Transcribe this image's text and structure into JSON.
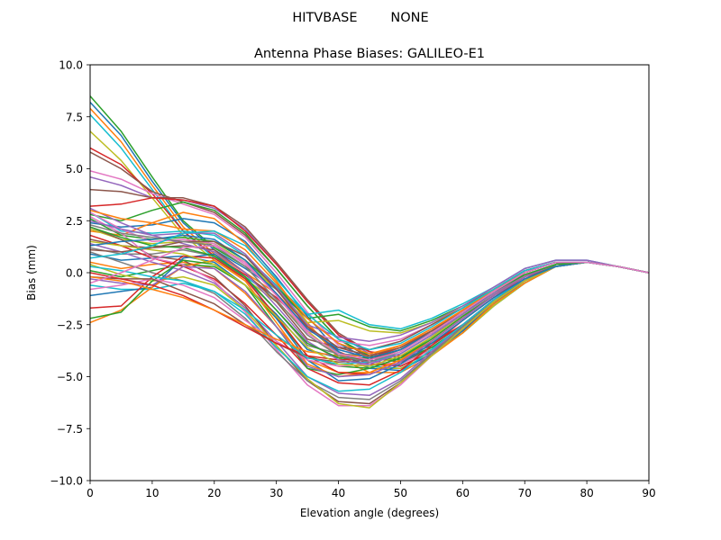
{
  "figure": {
    "suptitle": "HITVBASE        NONE"
  },
  "chart_data": {
    "type": "line",
    "title": "Antenna Phase Biases: GALILEO-E1",
    "xlabel": "Elevation angle (degrees)",
    "ylabel": "Bias (mm)",
    "xlim": [
      0,
      90
    ],
    "ylim": [
      -10,
      10
    ],
    "xticks": [
      "0",
      "10",
      "20",
      "30",
      "40",
      "50",
      "60",
      "70",
      "80",
      "90"
    ],
    "yticks": [
      "10.0",
      "7.5",
      "5.0",
      "2.5",
      "0.0",
      "−2.5",
      "−5.0",
      "−7.5",
      "−10.0"
    ],
    "grid": false,
    "legend": "none",
    "x": [
      0,
      5,
      10,
      15,
      20,
      25,
      30,
      35,
      40,
      45,
      50,
      55,
      60,
      65,
      70,
      75,
      80,
      85,
      90
    ],
    "series": [
      {
        "color": "#1f77b4",
        "values": [
          8.2,
          6.6,
          4.4,
          2.4,
          1.1,
          0.2,
          -0.8,
          -2.2,
          -3.4,
          -4.2,
          -4.5,
          -3.8,
          -2.9,
          -1.6,
          -0.5,
          0.3,
          0.5,
          0.3,
          0.0
        ]
      },
      {
        "color": "#ff7f0e",
        "values": [
          7.9,
          6.3,
          4.2,
          2.2,
          0.9,
          0.0,
          -1.0,
          -2.5,
          -3.8,
          -4.4,
          -4.4,
          -3.7,
          -2.7,
          -1.5,
          -0.4,
          0.3,
          0.5,
          0.3,
          0.0
        ]
      },
      {
        "color": "#2ca02c",
        "values": [
          8.5,
          6.8,
          4.6,
          2.5,
          1.2,
          0.3,
          -0.7,
          -2.0,
          -3.2,
          -4.0,
          -4.3,
          -3.7,
          -2.8,
          -1.5,
          -0.4,
          0.4,
          0.5,
          0.3,
          0.0
        ]
      },
      {
        "color": "#17becf",
        "values": [
          7.6,
          6.0,
          4.0,
          2.0,
          0.7,
          -0.2,
          -1.2,
          -2.6,
          -3.9,
          -4.5,
          -4.6,
          -3.9,
          -2.9,
          -1.6,
          -0.5,
          0.3,
          0.5,
          0.3,
          0.0
        ]
      },
      {
        "color": "#bcbd22",
        "values": [
          6.8,
          5.4,
          3.6,
          1.8,
          0.6,
          -0.3,
          -1.4,
          -2.8,
          -4.0,
          -4.6,
          -4.6,
          -3.9,
          -2.9,
          -1.6,
          -0.5,
          0.3,
          0.5,
          0.3,
          0.0
        ]
      },
      {
        "color": "#d62728",
        "values": [
          6.0,
          5.2,
          3.8,
          2.0,
          0.8,
          -0.1,
          -1.2,
          -2.6,
          -3.8,
          -4.4,
          -4.5,
          -3.8,
          -2.8,
          -1.5,
          -0.4,
          0.3,
          0.5,
          0.3,
          0.0
        ]
      },
      {
        "color": "#8c564b",
        "values": [
          5.8,
          5.0,
          3.9,
          3.4,
          2.9,
          1.8,
          0.2,
          -1.6,
          -3.2,
          -4.1,
          -4.3,
          -3.6,
          -2.6,
          -1.4,
          -0.4,
          0.4,
          0.5,
          0.3,
          0.0
        ]
      },
      {
        "color": "#e377c2",
        "values": [
          4.9,
          4.5,
          3.8,
          3.3,
          2.8,
          1.7,
          0.0,
          -1.9,
          -3.5,
          -4.3,
          -4.4,
          -3.7,
          -2.7,
          -1.4,
          -0.4,
          0.4,
          0.5,
          0.3,
          0.0
        ]
      },
      {
        "color": "#9467bd",
        "values": [
          4.6,
          4.2,
          3.6,
          3.5,
          3.1,
          2.1,
          0.4,
          -1.4,
          -3.0,
          -3.9,
          -4.2,
          -3.6,
          -2.6,
          -1.4,
          -0.4,
          0.4,
          0.5,
          0.3,
          0.0
        ]
      },
      {
        "color": "#8c564b",
        "values": [
          4.0,
          3.9,
          3.6,
          3.6,
          3.2,
          2.2,
          0.5,
          -1.3,
          -2.9,
          -3.8,
          -4.1,
          -3.5,
          -2.5,
          -1.3,
          -0.3,
          0.4,
          0.5,
          0.3,
          0.0
        ]
      },
      {
        "color": "#d62728",
        "values": [
          3.2,
          3.3,
          3.6,
          3.5,
          3.2,
          2.0,
          0.4,
          -1.4,
          -3.0,
          -3.8,
          -4.0,
          -3.4,
          -2.5,
          -1.3,
          -0.3,
          0.4,
          0.5,
          0.3,
          0.0
        ]
      },
      {
        "color": "#2ca02c",
        "values": [
          2.8,
          2.5,
          3.0,
          3.4,
          3.0,
          1.9,
          0.2,
          -1.6,
          -3.2,
          -4.0,
          -4.2,
          -3.6,
          -2.6,
          -1.4,
          -0.4,
          0.4,
          0.5,
          0.3,
          0.0
        ]
      },
      {
        "color": "#1f77b4",
        "values": [
          2.4,
          2.2,
          2.3,
          2.6,
          2.4,
          1.5,
          -0.2,
          -2.1,
          -3.8,
          -4.6,
          -4.7,
          -3.9,
          -2.8,
          -1.5,
          -0.4,
          0.3,
          0.5,
          0.3,
          0.0
        ]
      },
      {
        "color": "#ff7f0e",
        "values": [
          2.0,
          1.8,
          2.4,
          2.9,
          2.6,
          1.4,
          -0.4,
          -2.4,
          -4.1,
          -4.8,
          -4.8,
          -4.0,
          -2.9,
          -1.5,
          -0.5,
          0.3,
          0.5,
          0.3,
          0.0
        ]
      },
      {
        "color": "#17becf",
        "values": [
          2.9,
          2.0,
          1.9,
          2.0,
          1.8,
          0.8,
          -0.6,
          -2.0,
          -1.8,
          -2.5,
          -2.7,
          -2.2,
          -1.5,
          -0.7,
          0.2,
          0.6,
          0.6,
          0.3,
          0.0
        ]
      },
      {
        "color": "#2ca02c",
        "values": [
          2.6,
          1.8,
          1.6,
          1.7,
          1.5,
          0.6,
          -0.7,
          -2.2,
          -2.0,
          -2.6,
          -2.8,
          -2.3,
          -1.6,
          -0.8,
          0.1,
          0.5,
          0.5,
          0.3,
          0.0
        ]
      },
      {
        "color": "#bcbd22",
        "values": [
          2.1,
          1.6,
          1.4,
          1.5,
          1.4,
          0.5,
          -0.8,
          -2.4,
          -2.3,
          -2.8,
          -2.9,
          -2.4,
          -1.7,
          -0.8,
          0.1,
          0.5,
          0.5,
          0.3,
          0.0
        ]
      },
      {
        "color": "#9467bd",
        "values": [
          3.1,
          2.4,
          1.8,
          1.9,
          1.9,
          0.9,
          -0.7,
          -2.5,
          -3.1,
          -3.3,
          -3.0,
          -2.4,
          -1.6,
          -0.7,
          0.2,
          0.6,
          0.6,
          0.3,
          0.0
        ]
      },
      {
        "color": "#e377c2",
        "values": [
          2.9,
          2.1,
          1.5,
          1.6,
          1.4,
          0.4,
          -1.0,
          -2.8,
          -3.3,
          -3.5,
          -3.2,
          -2.5,
          -1.7,
          -0.8,
          0.1,
          0.5,
          0.5,
          0.3,
          0.0
        ]
      },
      {
        "color": "#8c564b",
        "values": [
          1.6,
          1.3,
          1.2,
          1.3,
          1.1,
          0.0,
          -1.4,
          -3.2,
          -3.6,
          -3.7,
          -3.3,
          -2.5,
          -1.7,
          -0.8,
          0.1,
          0.5,
          0.5,
          0.3,
          0.0
        ]
      },
      {
        "color": "#7f7f7f",
        "values": [
          1.2,
          0.9,
          0.9,
          1.1,
          0.8,
          -0.3,
          -1.8,
          -3.5,
          -3.9,
          -4.0,
          -3.5,
          -2.7,
          -1.8,
          -0.9,
          0.0,
          0.5,
          0.5,
          0.3,
          0.0
        ]
      },
      {
        "color": "#1f77b4",
        "values": [
          0.9,
          0.6,
          0.7,
          0.8,
          0.5,
          -0.6,
          -2.0,
          -3.7,
          -4.1,
          -4.2,
          -3.7,
          -2.8,
          -1.9,
          -1.0,
          0.0,
          0.5,
          0.5,
          0.3,
          0.0
        ]
      },
      {
        "color": "#ff7f0e",
        "values": [
          0.5,
          0.2,
          0.4,
          0.5,
          0.2,
          -1.0,
          -2.6,
          -4.2,
          -4.8,
          -4.8,
          -4.2,
          -3.2,
          -2.1,
          -1.1,
          -0.1,
          0.4,
          0.5,
          0.3,
          0.0
        ]
      },
      {
        "color": "#2ca02c",
        "values": [
          0.1,
          -0.2,
          0.1,
          0.4,
          0.3,
          -0.6,
          -2.2,
          -4.0,
          -4.5,
          -4.6,
          -4.1,
          -3.1,
          -2.0,
          -1.0,
          -0.1,
          0.4,
          0.5,
          0.3,
          0.0
        ]
      },
      {
        "color": "#d62728",
        "values": [
          1.8,
          1.3,
          0.7,
          0.3,
          -0.3,
          -1.5,
          -3.0,
          -4.6,
          -5.3,
          -5.4,
          -4.7,
          -3.5,
          -2.3,
          -1.2,
          -0.2,
          0.4,
          0.5,
          0.3,
          0.0
        ]
      },
      {
        "color": "#9467bd",
        "values": [
          1.4,
          1.0,
          0.5,
          0.1,
          -0.5,
          -1.7,
          -3.3,
          -5.0,
          -5.8,
          -5.9,
          -5.1,
          -3.8,
          -2.5,
          -1.3,
          -0.3,
          0.3,
          0.5,
          0.3,
          0.0
        ]
      },
      {
        "color": "#8c564b",
        "values": [
          2.2,
          1.6,
          0.8,
          0.6,
          -0.2,
          -1.6,
          -3.5,
          -5.2,
          -6.2,
          -6.3,
          -5.3,
          -3.9,
          -2.6,
          -1.4,
          -0.3,
          0.3,
          0.5,
          0.3,
          0.0
        ]
      },
      {
        "color": "#e377c2",
        "values": [
          2.7,
          1.9,
          0.7,
          0.4,
          -0.4,
          -1.9,
          -3.7,
          -5.4,
          -6.4,
          -6.4,
          -5.4,
          -4.0,
          -2.7,
          -1.4,
          -0.4,
          0.3,
          0.5,
          0.3,
          0.0
        ]
      },
      {
        "color": "#7f7f7f",
        "values": [
          1.0,
          0.5,
          0.0,
          -0.4,
          -1.0,
          -2.2,
          -3.8,
          -5.2,
          -6.0,
          -6.1,
          -5.2,
          -3.9,
          -2.6,
          -1.4,
          -0.4,
          0.3,
          0.5,
          0.3,
          0.0
        ]
      },
      {
        "color": "#bcbd22",
        "values": [
          0.4,
          -0.1,
          -0.4,
          -0.2,
          -0.6,
          -1.8,
          -3.5,
          -5.1,
          -6.3,
          -6.5,
          -5.3,
          -4.0,
          -2.7,
          -1.4,
          -0.4,
          0.3,
          0.5,
          0.3,
          0.0
        ]
      },
      {
        "color": "#17becf",
        "values": [
          -0.6,
          -0.8,
          -0.8,
          -0.5,
          -0.9,
          -2.0,
          -3.6,
          -5.0,
          -5.7,
          -5.6,
          -4.8,
          -3.7,
          -2.5,
          -1.3,
          -0.3,
          0.3,
          0.5,
          0.3,
          0.0
        ]
      },
      {
        "color": "#1f77b4",
        "values": [
          -1.1,
          -0.9,
          -0.7,
          0.7,
          0.9,
          -0.2,
          -2.2,
          -4.2,
          -5.2,
          -5.1,
          -4.4,
          -3.4,
          -2.3,
          -1.2,
          -0.3,
          0.3,
          0.5,
          0.3,
          0.0
        ]
      },
      {
        "color": "#ff7f0e",
        "values": [
          -2.4,
          -1.8,
          -0.7,
          0.3,
          0.6,
          -0.4,
          -2.4,
          -4.4,
          -5.0,
          -4.8,
          -4.2,
          -3.3,
          -2.2,
          -1.1,
          -0.2,
          0.4,
          0.5,
          0.3,
          0.0
        ]
      },
      {
        "color": "#2ca02c",
        "values": [
          -2.2,
          -1.9,
          -0.4,
          0.6,
          0.4,
          -0.6,
          -2.6,
          -4.6,
          -4.9,
          -4.6,
          -4.1,
          -3.2,
          -2.1,
          -1.1,
          -0.2,
          0.4,
          0.5,
          0.3,
          0.0
        ]
      },
      {
        "color": "#d62728",
        "values": [
          -1.7,
          -1.6,
          -0.2,
          0.8,
          0.7,
          -0.3,
          -2.1,
          -4.0,
          -4.8,
          -4.9,
          -4.3,
          -3.3,
          -2.2,
          -1.1,
          -0.2,
          0.4,
          0.5,
          0.3,
          0.0
        ]
      },
      {
        "color": "#9467bd",
        "values": [
          -0.3,
          -0.5,
          -0.6,
          0.3,
          0.2,
          -0.9,
          -2.6,
          -4.5,
          -5.0,
          -4.9,
          -4.3,
          -3.3,
          -2.2,
          -1.1,
          -0.2,
          0.4,
          0.5,
          0.3,
          0.0
        ]
      },
      {
        "color": "#e377c2",
        "values": [
          -0.8,
          -0.6,
          -0.3,
          -0.6,
          -1.2,
          -2.3,
          -3.3,
          -4.2,
          -4.5,
          -4.4,
          -3.9,
          -3.0,
          -2.0,
          -1.0,
          -0.1,
          0.4,
          0.5,
          0.3,
          0.0
        ]
      },
      {
        "color": "#8c564b",
        "values": [
          -0.2,
          -0.3,
          -0.3,
          -0.9,
          -1.5,
          -2.5,
          -3.4,
          -4.1,
          -4.3,
          -4.2,
          -3.7,
          -2.9,
          -1.9,
          -0.9,
          -0.1,
          0.4,
          0.5,
          0.3,
          0.0
        ]
      },
      {
        "color": "#d62728",
        "values": [
          0.0,
          -0.3,
          -0.6,
          -1.1,
          -1.8,
          -2.6,
          -3.4,
          -4.0,
          -4.2,
          -4.1,
          -3.6,
          -2.8,
          -1.8,
          -0.9,
          -0.1,
          0.4,
          0.5,
          0.3,
          0.0
        ]
      },
      {
        "color": "#ff7f0e",
        "values": [
          -0.2,
          -0.4,
          -0.8,
          -1.2,
          -1.8,
          -2.5,
          -3.2,
          -3.8,
          -4.0,
          -4.0,
          -3.5,
          -2.8,
          -1.8,
          -0.8,
          0.0,
          0.5,
          0.5,
          0.3,
          0.0
        ]
      },
      {
        "color": "#17becf",
        "values": [
          0.3,
          0.1,
          -0.2,
          -0.4,
          -0.9,
          -1.8,
          -3.0,
          -4.1,
          -4.4,
          -4.3,
          -3.9,
          -3.0,
          -2.0,
          -1.0,
          -0.1,
          0.4,
          0.5,
          0.3,
          0.0
        ]
      },
      {
        "color": "#bcbd22",
        "values": [
          1.5,
          1.3,
          1.1,
          0.9,
          0.4,
          -0.6,
          -2.1,
          -3.6,
          -4.4,
          -4.5,
          -4.0,
          -3.1,
          -2.0,
          -1.0,
          -0.1,
          0.4,
          0.5,
          0.3,
          0.0
        ]
      },
      {
        "color": "#9467bd",
        "values": [
          2.5,
          2.1,
          1.8,
          1.4,
          1.0,
          0.0,
          -1.6,
          -3.3,
          -4.2,
          -4.4,
          -3.9,
          -3.0,
          -2.0,
          -1.0,
          -0.1,
          0.4,
          0.5,
          0.3,
          0.0
        ]
      },
      {
        "color": "#2ca02c",
        "values": [
          2.2,
          1.7,
          1.3,
          1.2,
          0.8,
          -0.2,
          -1.8,
          -3.4,
          -4.1,
          -4.1,
          -3.7,
          -2.9,
          -1.9,
          -0.9,
          -0.1,
          0.4,
          0.5,
          0.3,
          0.0
        ]
      },
      {
        "color": "#1f77b4",
        "values": [
          1.3,
          1.5,
          1.6,
          1.8,
          1.6,
          0.6,
          -1.0,
          -2.7,
          -3.7,
          -4.1,
          -3.7,
          -2.9,
          -1.9,
          -0.9,
          0.0,
          0.5,
          0.5,
          0.3,
          0.0
        ]
      },
      {
        "color": "#8c564b",
        "values": [
          1.1,
          1.0,
          1.2,
          1.5,
          1.5,
          0.8,
          -0.8,
          -2.6,
          -3.6,
          -4.0,
          -3.6,
          -2.8,
          -1.9,
          -0.9,
          0.0,
          0.5,
          0.5,
          0.3,
          0.0
        ]
      },
      {
        "color": "#ff7f0e",
        "values": [
          3.0,
          2.6,
          2.4,
          2.1,
          2.0,
          1.1,
          -0.5,
          -2.2,
          -3.4,
          -3.9,
          -3.5,
          -2.7,
          -1.8,
          -0.9,
          0.0,
          0.5,
          0.5,
          0.3,
          0.0
        ]
      },
      {
        "color": "#7f7f7f",
        "values": [
          2.3,
          1.9,
          1.7,
          1.5,
          1.3,
          0.3,
          -1.3,
          -3.0,
          -4.0,
          -4.3,
          -3.8,
          -2.9,
          -1.9,
          -0.9,
          0.0,
          0.5,
          0.5,
          0.3,
          0.0
        ]
      },
      {
        "color": "#17becf",
        "values": [
          0.7,
          0.9,
          1.3,
          1.9,
          2.0,
          1.3,
          -0.3,
          -2.0,
          -3.2,
          -3.7,
          -3.4,
          -2.6,
          -1.7,
          -0.8,
          0.1,
          0.5,
          0.5,
          0.3,
          0.0
        ]
      },
      {
        "color": "#e377c2",
        "values": [
          -0.5,
          0.0,
          0.6,
          1.2,
          1.3,
          0.5,
          -1.1,
          -2.9,
          -3.9,
          -4.2,
          -3.8,
          -2.9,
          -1.9,
          -0.9,
          0.0,
          0.5,
          0.5,
          0.3,
          0.0
        ]
      }
    ]
  }
}
